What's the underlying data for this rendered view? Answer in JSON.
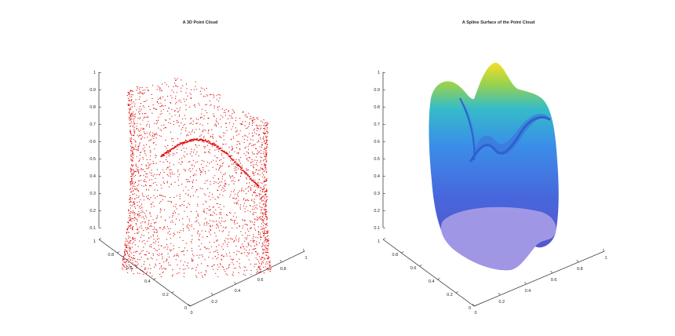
{
  "chart_data": [
    {
      "type": "scatter",
      "title": "A 3D Point Cloud",
      "marker_color": "#e00000",
      "xlabel": "",
      "ylabel": "",
      "zlabel": "",
      "xlim": [
        0,
        1
      ],
      "ylim": [
        0,
        1
      ],
      "zlim": [
        0.1,
        1
      ],
      "x_ticks": [
        "0",
        "0.2",
        "0.4",
        "0.6",
        "0.8",
        "1"
      ],
      "y_ticks": [
        "0",
        "0.2",
        "0.4",
        "0.6",
        "0.8",
        "1"
      ],
      "z_ticks": [
        "0.1",
        "0.2",
        "0.3",
        "0.4",
        "0.5",
        "0.6",
        "0.7",
        "0.8",
        "0.9",
        "1"
      ],
      "grid": false
    },
    {
      "type": "surface",
      "title": "A Spline Surface of the Point Cloud",
      "colormap": [
        "#4a3fb5",
        "#3a7ee6",
        "#35b4d6",
        "#3cc6a8",
        "#9bd04a",
        "#f2de28"
      ],
      "xlabel": "",
      "ylabel": "",
      "zlabel": "",
      "xlim": [
        0,
        1
      ],
      "ylim": [
        0,
        1
      ],
      "zlim": [
        0.1,
        1
      ],
      "x_ticks": [
        "0",
        "0.2",
        "0.4",
        "0.6",
        "0.8",
        "1"
      ],
      "y_ticks": [
        "0",
        "0.2",
        "0.4",
        "0.6",
        "0.8",
        "1"
      ],
      "z_ticks": [
        "0.1",
        "0.2",
        "0.3",
        "0.4",
        "0.5",
        "0.6",
        "0.7",
        "0.8",
        "0.9",
        "1"
      ],
      "grid": false
    }
  ]
}
